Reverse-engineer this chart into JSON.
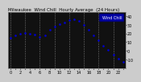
{
  "title": "Milwaukee  Wind Chill  Hourly Average  (24 Hours)",
  "hours": [
    0,
    1,
    2,
    3,
    4,
    5,
    6,
    7,
    8,
    9,
    10,
    11,
    12,
    13,
    14,
    15,
    16,
    17,
    18,
    19,
    20,
    21,
    22,
    23
  ],
  "values": [
    15,
    18,
    20,
    21,
    20,
    19,
    16,
    18,
    24,
    28,
    31,
    33,
    35,
    36,
    34,
    30,
    24,
    18,
    12,
    6,
    1,
    -4,
    -9,
    -13
  ],
  "dot_color": "#0000cc",
  "plot_bg_color": "#111111",
  "fig_bg_color": "#cccccc",
  "grid_color": "#888888",
  "ylim_min": -20,
  "ylim_max": 45,
  "ytick_values": [
    -10,
    0,
    10,
    20,
    30,
    40
  ],
  "xtick_labels": [
    "0",
    "",
    "2",
    "",
    "4",
    "",
    "6",
    "",
    "8",
    "",
    "10",
    "",
    "12",
    "",
    "14",
    "",
    "16",
    "",
    "18",
    "",
    "20",
    "",
    "22",
    "",
    ""
  ],
  "legend_label": "Wind Chill",
  "legend_bg": "#0000cc",
  "legend_text_color": "#ffffff",
  "title_fontsize": 4,
  "tick_fontsize": 3.5,
  "grid_step": 3
}
